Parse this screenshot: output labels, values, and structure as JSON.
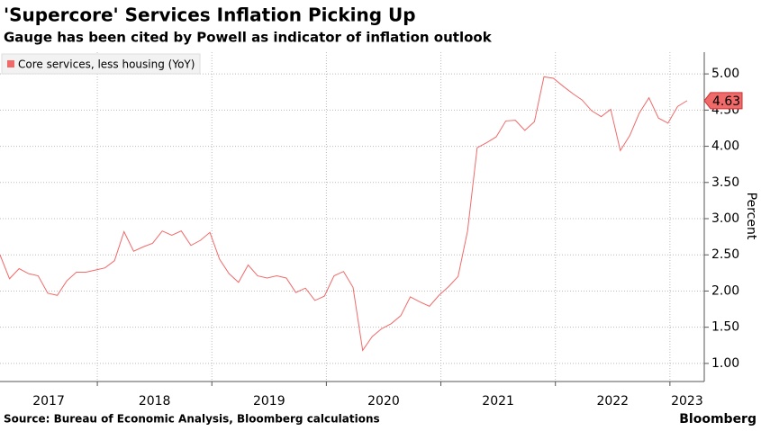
{
  "chart_data": {
    "type": "line",
    "title": "'Supercore' Services Inflation Picking Up",
    "subtitle": "Gauge has been cited by Powell as indicator of inflation outlook",
    "y_label": "Percent",
    "source": "Source: Bureau of Economic Analysis, Bloomberg calculations",
    "brand": "Bloomberg",
    "legend": "top-left",
    "grid": true,
    "xlim": [
      2017.15,
      2023.3
    ],
    "xticks": [
      2017,
      2018,
      2019,
      2020,
      2021,
      2022,
      2023
    ],
    "ylim": [
      0.75,
      5.3
    ],
    "yticks": [
      {
        "value": 1,
        "label": "1.00"
      },
      {
        "value": 1.5,
        "label": "1.50"
      },
      {
        "value": 2,
        "label": "2.00"
      },
      {
        "value": 2.5,
        "label": "2.50"
      },
      {
        "value": 3,
        "label": "3.00"
      },
      {
        "value": 3.5,
        "label": "3.50"
      },
      {
        "value": 4,
        "label": "4.00"
      },
      {
        "value": 4.5,
        "label": "4.50"
      },
      {
        "value": 5,
        "label": "5.00"
      }
    ],
    "x": [
      2017.15,
      2017.233,
      2017.317,
      2017.4,
      2017.483,
      2017.567,
      2017.65,
      2017.733,
      2017.817,
      2017.9,
      2017.983,
      2018.067,
      2018.15,
      2018.233,
      2018.317,
      2018.4,
      2018.483,
      2018.567,
      2018.65,
      2018.733,
      2018.817,
      2018.9,
      2018.983,
      2019.067,
      2019.15,
      2019.233,
      2019.317,
      2019.4,
      2019.483,
      2019.567,
      2019.65,
      2019.733,
      2019.817,
      2019.9,
      2019.983,
      2020.067,
      2020.15,
      2020.233,
      2020.317,
      2020.4,
      2020.483,
      2020.567,
      2020.65,
      2020.733,
      2020.817,
      2020.9,
      2020.983,
      2021.067,
      2021.15,
      2021.233,
      2021.317,
      2021.4,
      2021.483,
      2021.567,
      2021.65,
      2021.733,
      2021.817,
      2021.9,
      2021.983,
      2022.067,
      2022.15,
      2022.233,
      2022.317,
      2022.4,
      2022.483,
      2022.567,
      2022.65,
      2022.733,
      2022.817,
      2022.9,
      2022.983,
      2023.067,
      2023.15
    ],
    "series": [
      {
        "name": "Core services, less housing (YoY)",
        "color": "#f06a6a",
        "values": [
          2.5,
          2.17,
          2.31,
          2.24,
          2.21,
          1.97,
          1.94,
          2.14,
          2.26,
          2.26,
          2.29,
          2.32,
          2.42,
          2.82,
          2.55,
          2.61,
          2.66,
          2.83,
          2.77,
          2.83,
          2.63,
          2.7,
          2.81,
          2.44,
          2.24,
          2.12,
          2.36,
          2.21,
          2.18,
          2.21,
          2.18,
          1.98,
          2.04,
          1.87,
          1.93,
          2.21,
          2.27,
          2.05,
          1.18,
          1.37,
          1.48,
          1.55,
          1.66,
          1.92,
          1.85,
          1.79,
          1.94,
          2.06,
          2.2,
          2.83,
          3.98,
          4.05,
          4.13,
          4.35,
          4.36,
          4.22,
          4.34,
          4.96,
          4.94,
          4.83,
          4.73,
          4.64,
          4.49,
          4.41,
          4.51,
          3.94,
          4.15,
          4.46,
          4.67,
          4.39,
          4.32,
          4.55,
          4.63
        ]
      }
    ]
  }
}
